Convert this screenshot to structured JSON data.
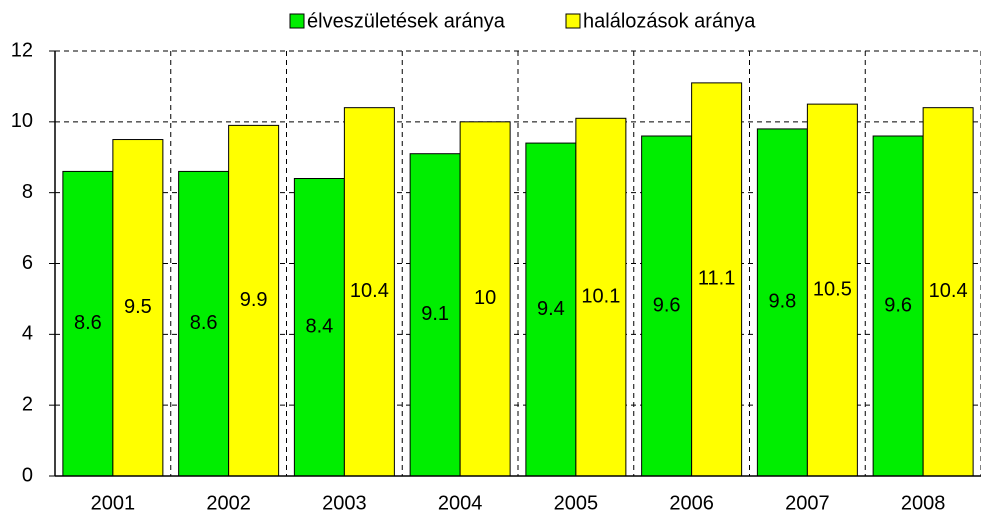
{
  "chart_data": {
    "type": "bar",
    "categories": [
      "2001",
      "2002",
      "2003",
      "2004",
      "2005",
      "2006",
      "2007",
      "2008"
    ],
    "series": [
      {
        "name": "élveszületések aránya",
        "color": "#00ee00",
        "values": [
          8.6,
          8.6,
          8.4,
          9.1,
          9.4,
          9.6,
          9.8,
          9.6
        ]
      },
      {
        "name": "halálozások aránya",
        "color": "#ffff00",
        "values": [
          9.5,
          9.9,
          10.4,
          10,
          10.1,
          11.1,
          10.5,
          10.4
        ]
      }
    ],
    "ylim": [
      0,
      12
    ],
    "yticks": [
      0,
      2,
      4,
      6,
      8,
      10,
      12
    ],
    "grid": true,
    "legend": "top"
  }
}
